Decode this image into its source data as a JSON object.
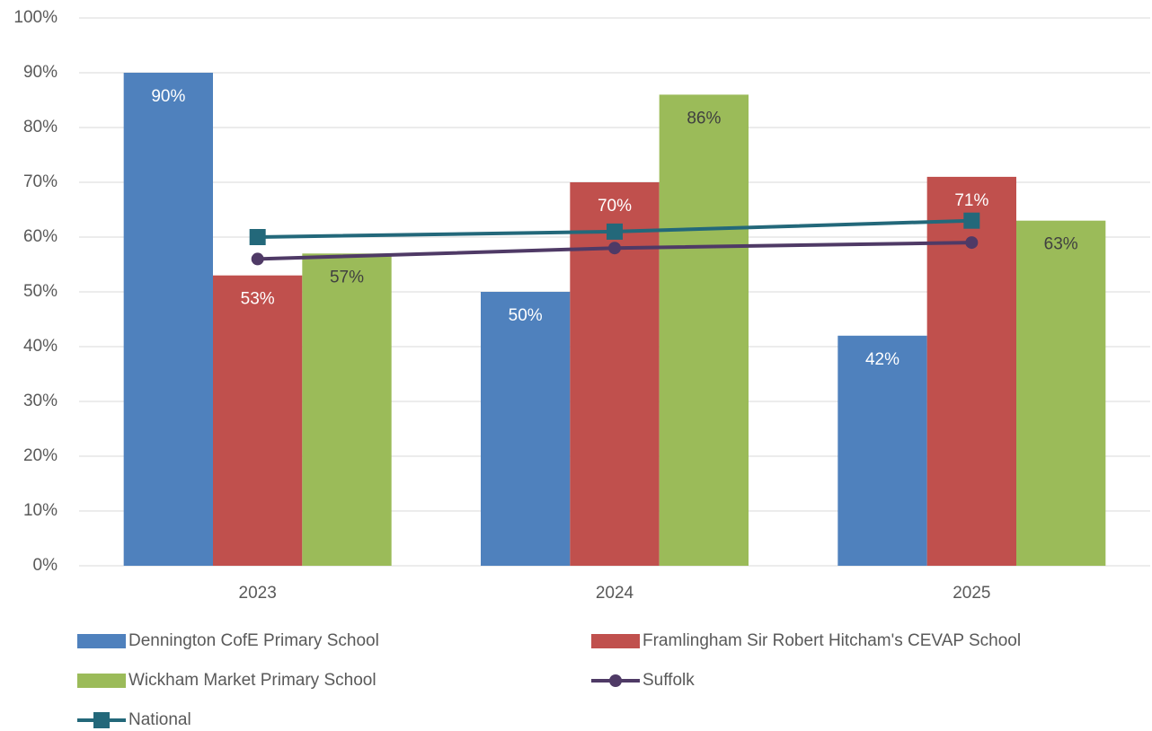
{
  "chart_data": {
    "type": "bar",
    "categories": [
      "2023",
      "2024",
      "2025"
    ],
    "series": [
      {
        "name": "Dennington CofE Primary School",
        "type": "bar",
        "color": "#4f81bd",
        "label_color": "#ffffff",
        "values": [
          90,
          50,
          42
        ],
        "value_labels": [
          "90%",
          "50%",
          "42%"
        ]
      },
      {
        "name": "Framlingham Sir Robert Hitcham's CEVAP School",
        "type": "bar",
        "color": "#c0504d",
        "label_color": "#ffffff",
        "values": [
          53,
          70,
          71
        ],
        "value_labels": [
          "53%",
          "70%",
          "71%"
        ]
      },
      {
        "name": "Wickham Market Primary School",
        "type": "bar",
        "color": "#9bbb59",
        "label_color": "#404040",
        "values": [
          57,
          86,
          63
        ],
        "value_labels": [
          "57%",
          "86%",
          "63%"
        ]
      },
      {
        "name": "Suffolk",
        "type": "line",
        "marker": "circle",
        "color": "#4f3a66",
        "values": [
          56,
          58,
          59
        ]
      },
      {
        "name": "National",
        "type": "line",
        "marker": "square",
        "color": "#23687a",
        "values": [
          60,
          61,
          63
        ]
      }
    ],
    "ylim": [
      0,
      100
    ],
    "yticks": [
      {
        "value": 0,
        "label": "0%"
      },
      {
        "value": 10,
        "label": "10%"
      },
      {
        "value": 20,
        "label": "20%"
      },
      {
        "value": 30,
        "label": "30%"
      },
      {
        "value": 40,
        "label": "40%"
      },
      {
        "value": 50,
        "label": "50%"
      },
      {
        "value": 60,
        "label": "60%"
      },
      {
        "value": 70,
        "label": "70%"
      },
      {
        "value": 80,
        "label": "80%"
      },
      {
        "value": 90,
        "label": "90%"
      },
      {
        "value": 100,
        "label": "100%"
      }
    ],
    "grid": true
  }
}
